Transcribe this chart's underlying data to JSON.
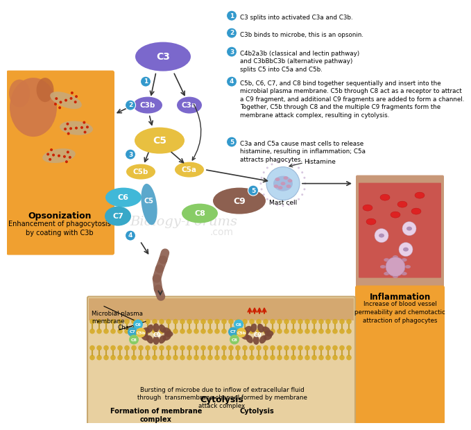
{
  "background": "#ffffff",
  "numbered_steps": [
    "C3 splits into activated C3a and C3b.",
    "C3b binds to microbe, this is an opsonin.",
    "C4b2a3b (classical and lectin pathway)\nand C3bBbC3b (alternative pathway)\nsplits C5 into C5a and C5b.",
    "C5b, C6, C7, and C8 bind together sequentially and insert into the\nmicrobial plasma membrane. C5b through C8 act as a receptor to attract\na C9 fragment, and additional C9 fragments are added to form a channel.\nTogether, C5b through C8 and the multiple C9 fragments form the\nmembrane attack complex, resulting in cytolysis.",
    "C3a and C5a cause mast cells to release\nhistamine, resulting in inflammation; C5a\nattracts phagocytes."
  ],
  "step3_line1": "C4b2a3b",
  "step3_underline": true,
  "opsonization_label": "Opsonization",
  "opsonization_sub": "Enhancement of phagocytosis\nby coating with C3b",
  "opsonization_bg": "#f0a030",
  "inflammation_label": "Inflammation",
  "inflammation_sub": "Increase of blood vessel\npermeability and chemotactic\nattraction of phagocytes",
  "inflammation_bg": "#f0a030",
  "cytolysis_label": "Cytolysis",
  "cytolysis_sub": "Bursting of microbe due to inflow of extracellular fluid\nthrough  transmembrane channel formed by membrane\nattack complex",
  "membrane_label": "Microbial plasma\nmembrane",
  "channel_label": "Channel",
  "left_complex_label": "Formation of membrane\ncomplex",
  "right_complex_label": "Cytolysis",
  "histamine_label": "Histamine",
  "mast_cell_label": "Mast cell",
  "c3_color": "#7b68cc",
  "c3b_color": "#7b68cc",
  "c3a_color": "#7b68cc",
  "c5_color": "#e8c040",
  "c5b_color": "#e8c040",
  "c5a_color": "#e8c040",
  "c6_color": "#40b8d8",
  "c7_color": "#38a8c8",
  "c8_color": "#88cc66",
  "c9_color": "#8d6050",
  "step_circle_color": "#3399cc",
  "watermark": "Biology-Forums",
  "watermark2": ".com"
}
